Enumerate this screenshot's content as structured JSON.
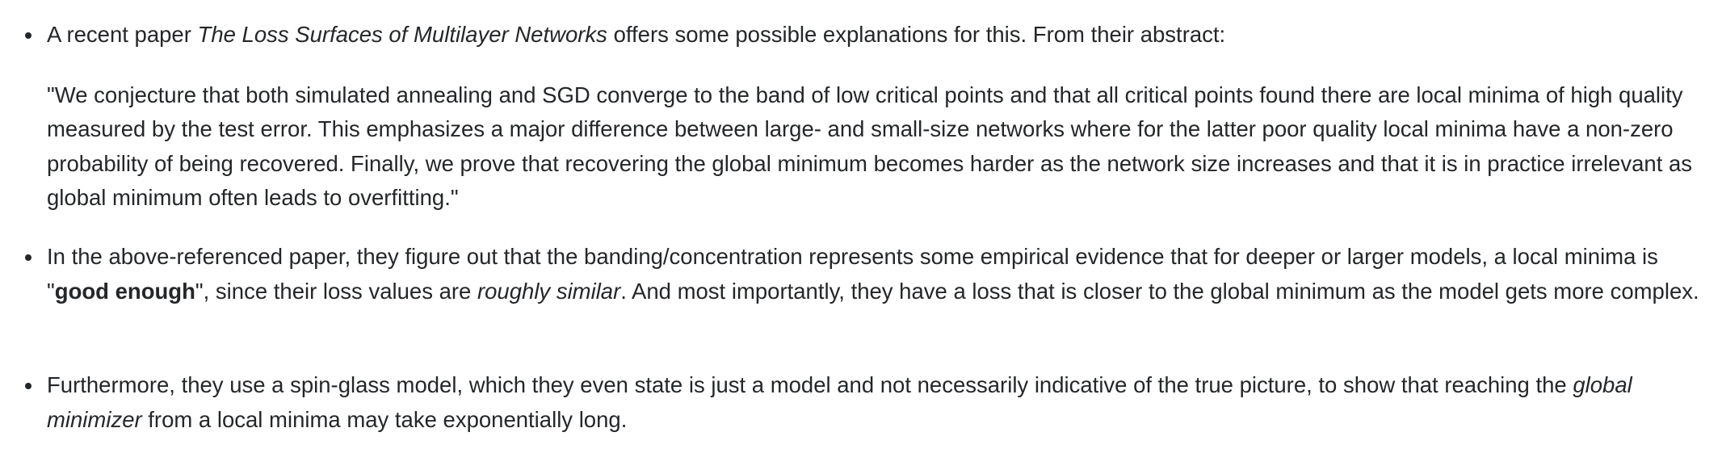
{
  "items": [
    {
      "text_1": "A recent paper ",
      "title_italic": "The Loss Surfaces of Multilayer Networks",
      "text_2": " offers some possible explanations for this. From their abstract:",
      "quote": "\"We conjecture that both simulated annealing and SGD converge to the band of low critical points and that all critical points found there are local minima of high quality measured by the test error. This emphasizes a major difference between large- and small-size networks where for the latter poor quality local minima have a non-zero probability of being recovered. Finally, we prove that recovering the global minimum becomes harder as the network size increases and that it is in practice irrelevant as global minimum often leads to overfitting.\""
    },
    {
      "text_1": "In the above-referenced paper, they figure out that the banding/concentration represents some empirical evidence that for deeper or larger models, a local minima is \"",
      "bold": "good enough",
      "text_2": "\", since their loss values are ",
      "italic": "roughly similar",
      "text_3": ". And most importantly, they have a loss that is closer to the global minimum as the model gets more complex."
    },
    {
      "text_1": "Furthermore, they use a spin-glass model, which they even state is just a model and not necessarily indicative of the true picture, to show that reaching the ",
      "italic": "global minimizer",
      "text_2": " from a local minima may take exponentially long."
    }
  ]
}
